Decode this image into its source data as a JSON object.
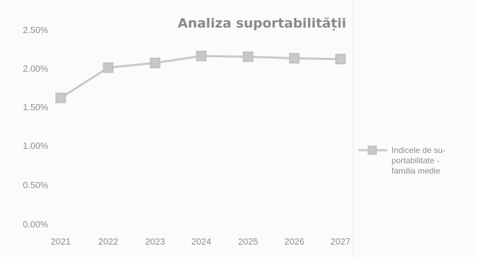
{
  "chart_data": {
    "type": "line",
    "title": "Analiza suportabilității",
    "categories": [
      "2021",
      "2022",
      "2023",
      "2024",
      "2025",
      "2026",
      "2027"
    ],
    "series": [
      {
        "name": "Indicele de suportabilitate - familia medie",
        "values": [
          1.63,
          2.02,
          2.08,
          2.17,
          2.16,
          2.14,
          2.13
        ],
        "color": "#c8c8c8"
      }
    ],
    "yticks": [
      "0.00%",
      "0.50%",
      "1.00%",
      "1.50%",
      "2.00%",
      "2.50%"
    ],
    "ylim": [
      0,
      2.5
    ],
    "xlabel": "",
    "ylabel": "",
    "grid": false,
    "legend": "right",
    "legend_lines": [
      "Indicele de su-",
      "portabilitate -",
      "familia medie"
    ]
  }
}
